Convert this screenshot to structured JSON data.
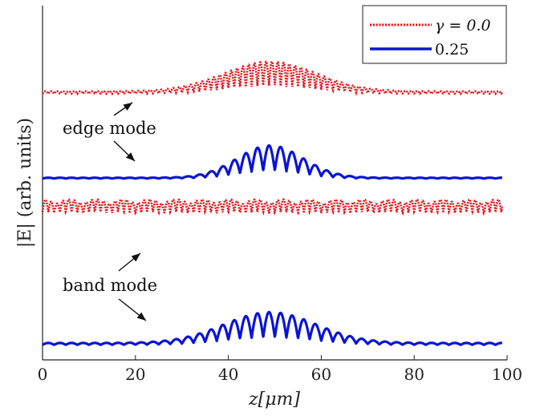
{
  "chart_data": {
    "type": "line",
    "xlabel": "z[μm]",
    "ylabel": "|E| (arb. units)",
    "xlim": [
      0,
      100
    ],
    "xticks": [
      "0",
      "20",
      "40",
      "60",
      "80",
      "100"
    ],
    "grid": false,
    "legend": {
      "placement": "top-right",
      "entries": [
        {
          "label": "γ = 0.0",
          "style": "dotted",
          "color": "#e8141b"
        },
        {
          "label": "0.25",
          "style": "solid",
          "color": "#0a14d6"
        }
      ]
    },
    "annotations": [
      {
        "text": "edge mode",
        "points_to": [
          {
            "x": 17,
            "trace": "edge_gamma0"
          },
          {
            "x": 20,
            "trace": "edge_gamma025"
          }
        ]
      },
      {
        "text": "band mode",
        "points_to": [
          {
            "x": 22,
            "trace": "band_gamma0"
          },
          {
            "x": 23,
            "trace": "band_gamma025"
          }
        ]
      }
    ],
    "series": [
      {
        "id": "edge_gamma0",
        "mode": "edge mode",
        "gamma": 0.0,
        "style": "dotted",
        "color": "#e8141b",
        "baseline": 0.0,
        "envelope": "gaussian",
        "peak_x": 49,
        "peak": 3.5,
        "floor": 0.35,
        "width": 14,
        "period": 1.25
      },
      {
        "id": "edge_gamma025",
        "mode": "edge mode",
        "gamma": 0.25,
        "style": "solid",
        "color": "#0a14d6",
        "baseline": 0.0,
        "envelope": "gaussian",
        "peak_x": 49,
        "peak": 3.3,
        "floor": 0.1,
        "width": 10,
        "period": 2.5
      },
      {
        "id": "band_gamma0",
        "mode": "band mode",
        "gamma": 0.0,
        "style": "dotted",
        "color": "#e8141b",
        "baseline": 0.0,
        "envelope": "flat",
        "peak": 2.4,
        "period": 1.25
      },
      {
        "id": "band_gamma025",
        "mode": "band mode",
        "gamma": 0.25,
        "style": "solid",
        "color": "#0a14d6",
        "baseline": 0.0,
        "envelope": "gaussian",
        "peak_x": 49,
        "peak": 3.3,
        "floor": 0.25,
        "width": 14,
        "period": 2.5
      }
    ]
  }
}
